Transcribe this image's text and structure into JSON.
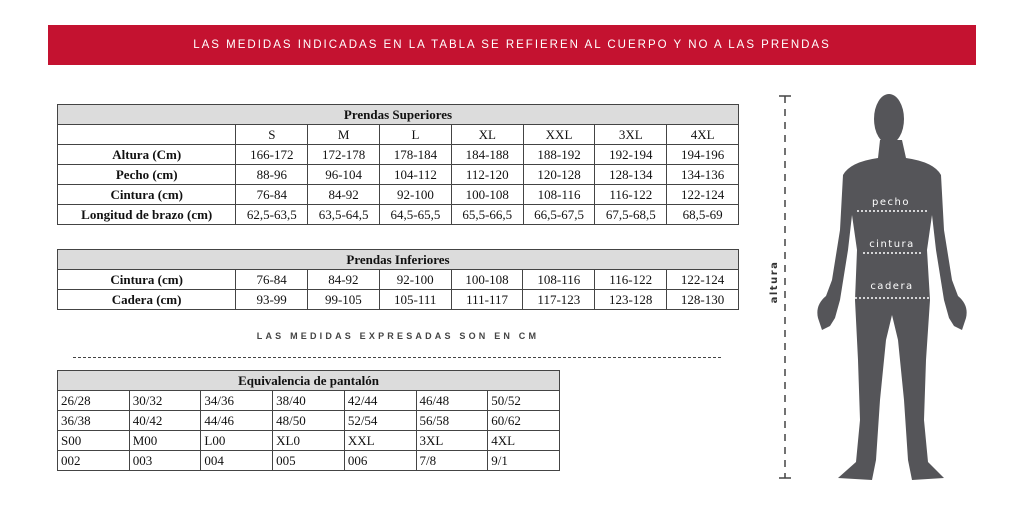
{
  "banner": "LAS MEDIDAS INDICADAS EN LA TABLA SE REFIEREN AL CUERPO Y NO A LAS PRENDAS",
  "upper": {
    "title": "Prendas Superiores",
    "sizes": [
      "S",
      "M",
      "L",
      "XL",
      "XXL",
      "3XL",
      "4XL"
    ],
    "rows": [
      {
        "label": "Altura (Cm)",
        "values": [
          "166-172",
          "172-178",
          "178-184",
          "184-188",
          "188-192",
          "192-194",
          "194-196"
        ]
      },
      {
        "label": "Pecho (cm)",
        "values": [
          "88-96",
          "96-104",
          "104-112",
          "112-120",
          "120-128",
          "128-134",
          "134-136"
        ]
      },
      {
        "label": "Cintura (cm)",
        "values": [
          "76-84",
          "84-92",
          "92-100",
          "100-108",
          "108-116",
          "116-122",
          "122-124"
        ]
      },
      {
        "label": "Longitud de brazo (cm)",
        "values": [
          "62,5-63,5",
          "63,5-64,5",
          "64,5-65,5",
          "65,5-66,5",
          "66,5-67,5",
          "67,5-68,5",
          "68,5-69"
        ]
      }
    ]
  },
  "lower": {
    "title": "Prendas Inferiores",
    "rows": [
      {
        "label": "Cintura (cm)",
        "values": [
          "76-84",
          "84-92",
          "92-100",
          "100-108",
          "108-116",
          "116-122",
          "122-124"
        ]
      },
      {
        "label": "Cadera (cm)",
        "values": [
          "93-99",
          "99-105",
          "105-111",
          "111-117",
          "117-123",
          "123-128",
          "128-130"
        ]
      }
    ]
  },
  "note": "LAS MEDIDAS EXPRESADAS SON EN CM",
  "pants": {
    "title": "Equivalencia de pantalón",
    "rows": [
      [
        "26/28",
        "30/32",
        "34/36",
        "38/40",
        "42/44",
        "46/48",
        "50/52"
      ],
      [
        "36/38",
        "40/42",
        "44/46",
        "48/50",
        "52/54",
        "56/58",
        "60/62"
      ],
      [
        "S00",
        "M00",
        "L00",
        "XL0",
        "XXL",
        "3XL",
        "4XL"
      ],
      [
        "002",
        "003",
        "004",
        "005",
        "006",
        "7/8",
        "9/1"
      ]
    ]
  },
  "figure": {
    "altura": "altura",
    "pecho": "pecho",
    "cintura": "cintura",
    "cadera": "cadera"
  },
  "colors": {
    "banner": "#c41230",
    "silhouette": "#555559",
    "header_bg": "#dcdcdc"
  }
}
